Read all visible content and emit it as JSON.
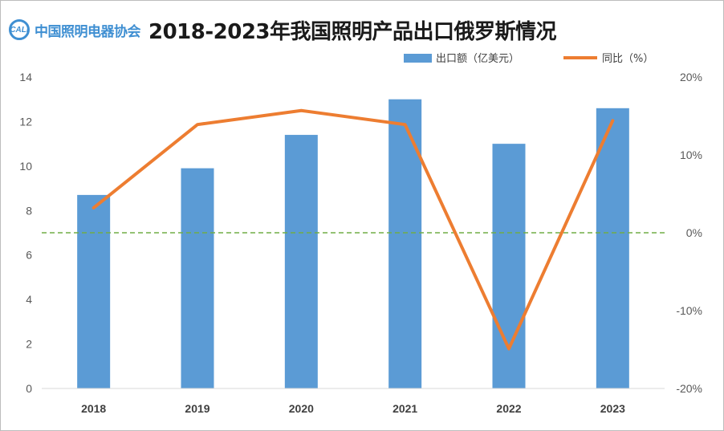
{
  "header": {
    "logo_text": "中国照明电器协会",
    "logo_mark": "CALI",
    "title": "2018-2023年我国照明产品出口俄罗斯情况"
  },
  "colors": {
    "bar": "#5b9bd5",
    "line": "#ed7d31",
    "zero_line": "#70ad47"
  },
  "chart_data": {
    "type": "bar",
    "title": "2018-2023年我国照明产品出口俄罗斯情况",
    "categories": [
      "2018",
      "2019",
      "2020",
      "2021",
      "2022",
      "2023"
    ],
    "series": [
      {
        "name": "出口额（亿美元）",
        "type": "bar",
        "axis": "left",
        "values": [
          8.7,
          9.9,
          11.4,
          13.0,
          11.0,
          12.6
        ]
      },
      {
        "name": "同比（%）",
        "type": "line",
        "axis": "right",
        "values": [
          3.2,
          13.9,
          15.7,
          13.9,
          -14.9,
          14.4
        ]
      }
    ],
    "y_left": {
      "min": 0,
      "max": 14,
      "ticks": [
        "0",
        "2",
        "4",
        "6",
        "8",
        "10",
        "12",
        "14"
      ]
    },
    "y_right": {
      "min": -20,
      "max": 20,
      "ticks": [
        "-20%",
        "-10%",
        "0%",
        "10%",
        "20%"
      ]
    },
    "reference_line": {
      "axis": "right",
      "value": 0,
      "style": "dashed"
    },
    "legend_position": "top-right",
    "grid": false
  }
}
